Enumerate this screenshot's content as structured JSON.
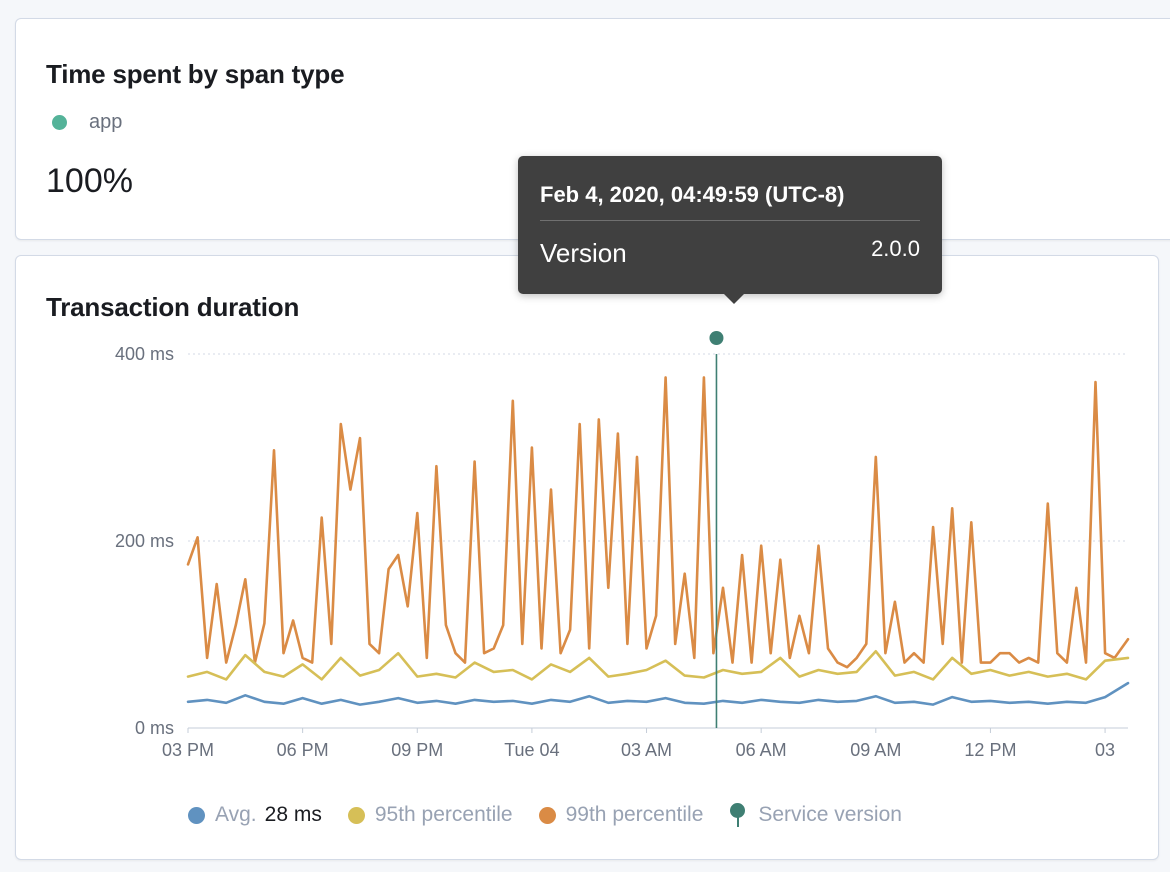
{
  "span_panel": {
    "title": "Time spent by span type",
    "legend_label": "app",
    "legend_color": "#54b399",
    "value": "100%"
  },
  "duration_panel": {
    "title": "Transaction duration"
  },
  "tooltip": {
    "title": "Feb 4, 2020, 04:49:59 (UTC-8)",
    "key": "Version",
    "value": "2.0.0"
  },
  "legend": {
    "avg_label": "Avg.",
    "avg_value": "28 ms",
    "p95_label": "95th percentile",
    "p99_label": "99th percentile",
    "version_label": "Service version"
  },
  "chart_data": {
    "type": "line",
    "title": "Transaction duration",
    "y_ticks": [
      "0 ms",
      "200 ms",
      "400 ms"
    ],
    "y_tick_values": [
      0,
      200,
      400
    ],
    "ylim": [
      0,
      400
    ],
    "x_ticks": [
      "03 PM",
      "06 PM",
      "09 PM",
      "Tue 04",
      "03 AM",
      "06 AM",
      "09 AM",
      "12 PM",
      "03"
    ],
    "x_tick_hours": [
      15,
      18,
      21,
      24,
      27,
      30,
      33,
      36,
      39
    ],
    "xlim_hours": [
      15,
      39.6
    ],
    "grid": true,
    "legend_position": "bottom",
    "colors": {
      "avg": "#6092c0",
      "p95": "#d6bf57",
      "p99": "#da8b45",
      "version": "#3f7f73"
    },
    "version_marker_hour": 28.83,
    "series": [
      {
        "name": "99th percentile",
        "key": "p99",
        "x": [
          15.0,
          15.25,
          15.5,
          15.75,
          16.0,
          16.25,
          16.5,
          16.75,
          17.0,
          17.25,
          17.5,
          17.75,
          18.0,
          18.25,
          18.5,
          18.75,
          19.0,
          19.25,
          19.5,
          19.75,
          20.0,
          20.25,
          20.5,
          20.75,
          21.0,
          21.25,
          21.5,
          21.75,
          22.0,
          22.25,
          22.5,
          22.75,
          23.0,
          23.25,
          23.5,
          23.75,
          24.0,
          24.25,
          24.5,
          24.75,
          25.0,
          25.25,
          25.5,
          25.75,
          26.0,
          26.25,
          26.5,
          26.75,
          27.0,
          27.25,
          27.5,
          27.75,
          28.0,
          28.25,
          28.5,
          28.75,
          29.0,
          29.25,
          29.5,
          29.75,
          30.0,
          30.25,
          30.5,
          30.75,
          31.0,
          31.25,
          31.5,
          31.75,
          32.0,
          32.25,
          32.5,
          32.75,
          33.0,
          33.25,
          33.5,
          33.75,
          34.0,
          34.25,
          34.5,
          34.75,
          35.0,
          35.25,
          35.5,
          35.75,
          36.0,
          36.25,
          36.5,
          36.75,
          37.0,
          37.25,
          37.5,
          37.75,
          38.0,
          38.25,
          38.5,
          38.75,
          39.0,
          39.25,
          39.6
        ],
        "values": [
          175,
          204,
          75,
          154,
          70,
          110,
          159,
          70,
          112,
          297,
          80,
          115,
          75,
          70,
          225,
          90,
          325,
          255,
          310,
          90,
          80,
          170,
          185,
          130,
          230,
          75,
          280,
          110,
          80,
          70,
          285,
          80,
          85,
          110,
          350,
          90,
          300,
          85,
          255,
          80,
          105,
          325,
          85,
          330,
          150,
          315,
          90,
          290,
          85,
          120,
          375,
          90,
          165,
          75,
          375,
          80,
          150,
          70,
          185,
          70,
          195,
          80,
          180,
          75,
          120,
          80,
          195,
          85,
          70,
          65,
          75,
          90,
          290,
          80,
          135,
          70,
          80,
          70,
          215,
          90,
          235,
          70,
          220,
          70,
          70,
          80,
          80,
          70,
          75,
          70,
          240,
          80,
          70,
          150,
          70,
          370,
          80,
          75,
          95
        ]
      },
      {
        "name": "95th percentile",
        "key": "p95",
        "x": [
          15.0,
          15.5,
          16.0,
          16.5,
          17.0,
          17.5,
          18.0,
          18.5,
          19.0,
          19.5,
          20.0,
          20.5,
          21.0,
          21.5,
          22.0,
          22.5,
          23.0,
          23.5,
          24.0,
          24.5,
          25.0,
          25.5,
          26.0,
          26.5,
          27.0,
          27.5,
          28.0,
          28.5,
          29.0,
          29.5,
          30.0,
          30.5,
          31.0,
          31.5,
          32.0,
          32.5,
          33.0,
          33.5,
          34.0,
          34.5,
          35.0,
          35.5,
          36.0,
          36.5,
          37.0,
          37.5,
          38.0,
          38.5,
          39.0,
          39.6
        ],
        "values": [
          55,
          60,
          52,
          78,
          60,
          55,
          68,
          52,
          75,
          56,
          62,
          80,
          55,
          58,
          54,
          70,
          60,
          62,
          52,
          68,
          60,
          75,
          55,
          58,
          62,
          72,
          56,
          54,
          62,
          58,
          60,
          75,
          55,
          62,
          58,
          60,
          82,
          56,
          60,
          52,
          75,
          58,
          62,
          56,
          60,
          55,
          58,
          52,
          72,
          75
        ]
      },
      {
        "name": "Avg.",
        "key": "avg",
        "x": [
          15.0,
          15.5,
          16.0,
          16.5,
          17.0,
          17.5,
          18.0,
          18.5,
          19.0,
          19.5,
          20.0,
          20.5,
          21.0,
          21.5,
          22.0,
          22.5,
          23.0,
          23.5,
          24.0,
          24.5,
          25.0,
          25.5,
          26.0,
          26.5,
          27.0,
          27.5,
          28.0,
          28.5,
          29.0,
          29.5,
          30.0,
          30.5,
          31.0,
          31.5,
          32.0,
          32.5,
          33.0,
          33.5,
          34.0,
          34.5,
          35.0,
          35.5,
          36.0,
          36.5,
          37.0,
          37.5,
          38.0,
          38.5,
          39.0,
          39.6
        ],
        "values": [
          28,
          30,
          27,
          35,
          28,
          26,
          32,
          26,
          30,
          25,
          28,
          32,
          27,
          29,
          26,
          30,
          28,
          29,
          26,
          30,
          28,
          34,
          27,
          29,
          28,
          32,
          27,
          26,
          29,
          27,
          30,
          28,
          27,
          30,
          28,
          29,
          34,
          27,
          28,
          25,
          33,
          28,
          29,
          27,
          28,
          26,
          28,
          27,
          33,
          48
        ]
      }
    ]
  }
}
